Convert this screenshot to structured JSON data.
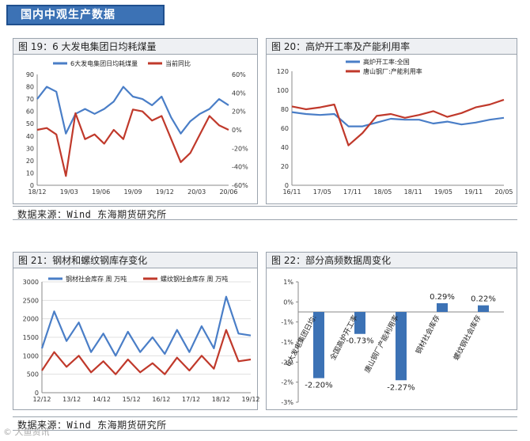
{
  "header": {
    "title": "国内中观生产数据"
  },
  "sources": [
    {
      "label": "数据来源：Wind  东海期货研究所"
    },
    {
      "label": "数据来源：Wind  东海期货研究所"
    }
  ],
  "watermark": "© 大鱼资讯",
  "colors": {
    "blue": "#4a7ec7",
    "red": "#c0392b",
    "header_bg": "#3c72b5"
  },
  "charts": [
    {
      "title": "图 19：6 大发电集团日均耗煤量",
      "chart_data": {
        "type": "line",
        "series": [
          {
            "name": "6大发电集团日均耗煤量",
            "axis": "left",
            "x": [
              "18/12",
              "19/01",
              "19/02",
              "19/03",
              "19/04",
              "19/05",
              "19/06",
              "19/07",
              "19/08",
              "19/09",
              "19/10",
              "19/11",
              "19/12",
              "20/01",
              "20/02",
              "20/03",
              "20/04",
              "20/05",
              "20/06",
              "20/07",
              "20/08"
            ],
            "values": [
              70,
              80,
              76,
              42,
              58,
              62,
              58,
              62,
              68,
              80,
              72,
              70,
              65,
              72,
              55,
              42,
              52,
              58,
              62,
              70,
              65
            ]
          },
          {
            "name": "当前同比",
            "axis": "right",
            "x": [
              "18/12",
              "19/01",
              "19/02",
              "19/03",
              "19/04",
              "19/05",
              "19/06",
              "19/07",
              "19/08",
              "19/09",
              "19/10",
              "19/11",
              "19/12",
              "20/01",
              "20/02",
              "20/03",
              "20/04",
              "20/05",
              "20/06",
              "20/07",
              "20/08"
            ],
            "values": [
              0,
              2,
              -5,
              -50,
              18,
              -10,
              -5,
              -15,
              0,
              -10,
              22,
              20,
              10,
              15,
              -10,
              -35,
              -25,
              -5,
              15,
              5,
              0
            ]
          }
        ],
        "x_ticks": [
          "18/12",
          "19/03",
          "19/06",
          "19/09",
          "19/12",
          "20/03",
          "20/06"
        ],
        "y_left": {
          "ticks": [
            "0",
            "10",
            "20",
            "30",
            "40",
            "50",
            "60",
            "70",
            "80",
            "90"
          ],
          "min": 0,
          "max": 90
        },
        "y_right": {
          "ticks": [
            "-60%",
            "-40%",
            "-20%",
            "0%",
            "20%",
            "40%",
            "60%"
          ],
          "min": -60,
          "max": 60
        },
        "legend_position": "top"
      }
    },
    {
      "title": "图 20：高炉开工率及产能利用率",
      "chart_data": {
        "type": "line",
        "series": [
          {
            "name": "高炉开工率:全国",
            "x": [
              "16/11",
              "17/02",
              "17/05",
              "17/08",
              "17/11",
              "18/02",
              "18/05",
              "18/08",
              "18/11",
              "19/02",
              "19/05",
              "19/08",
              "19/11",
              "20/02",
              "20/05",
              "20/08"
            ],
            "values": [
              77,
              75,
              74,
              75,
              62,
              62,
              66,
              70,
              69,
              69,
              65,
              67,
              64,
              66,
              69,
              71
            ]
          },
          {
            "name": "唐山钢厂:产能利用率",
            "x": [
              "16/11",
              "17/02",
              "17/05",
              "17/08",
              "17/11",
              "18/02",
              "18/05",
              "18/08",
              "18/11",
              "19/02",
              "19/05",
              "19/08",
              "19/11",
              "20/02",
              "20/05",
              "20/08"
            ],
            "values": [
              83,
              80,
              82,
              85,
              42,
              55,
              73,
              75,
              71,
              74,
              78,
              72,
              76,
              82,
              85,
              90
            ]
          }
        ],
        "x_ticks": [
          "16/11",
          "17/05",
          "17/11",
          "18/05",
          "18/11",
          "19/05",
          "19/11",
          "20/05"
        ],
        "y_left": {
          "ticks": [
            "0",
            "20",
            "40",
            "60",
            "80",
            "100",
            "120"
          ],
          "min": 0,
          "max": 120
        },
        "legend_position": "top-left"
      }
    },
    {
      "title": "图 21：钢材和螺纹钢库存变化",
      "chart_data": {
        "type": "line",
        "series": [
          {
            "name": "钢材社会库存 周 万吨",
            "x": [
              "12/12",
              "13/06",
              "13/12",
              "14/06",
              "14/12",
              "15/06",
              "15/12",
              "16/06",
              "16/12",
              "17/06",
              "17/12",
              "18/06",
              "18/12",
              "19/06",
              "19/12",
              "20/03",
              "20/06",
              "20/08"
            ],
            "values": [
              1200,
              2200,
              1400,
              1900,
              1100,
              1600,
              1000,
              1650,
              1100,
              1500,
              1050,
              1700,
              1100,
              1800,
              1200,
              2600,
              1600,
              1550
            ]
          },
          {
            "name": "螺纹钢社会库存 周 万吨",
            "x": [
              "12/12",
              "13/06",
              "13/12",
              "14/06",
              "14/12",
              "15/06",
              "15/12",
              "16/06",
              "16/12",
              "17/06",
              "17/12",
              "18/06",
              "18/12",
              "19/06",
              "19/12",
              "20/03",
              "20/06",
              "20/08"
            ],
            "values": [
              600,
              1100,
              700,
              1000,
              550,
              850,
              500,
              900,
              550,
              800,
              500,
              950,
              600,
              1000,
              650,
              1700,
              850,
              900
            ]
          }
        ],
        "x_ticks": [
          "12/12",
          "13/12",
          "14/12",
          "15/12",
          "16/12",
          "17/12",
          "18/12",
          "19/12"
        ],
        "y_left": {
          "ticks": [
            "0",
            "500",
            "1000",
            "1500",
            "2000",
            "2500",
            "3000"
          ],
          "min": 0,
          "max": 3000
        },
        "legend_position": "top"
      }
    },
    {
      "title": "图 22：部分高频数据周变化",
      "chart_data": {
        "type": "bar",
        "categories": [
          "6大发电集团日均:",
          "全国高炉开工率",
          "唐山钢厂产能利用率",
          "钢材社会库存",
          "螺纹钢社会库存"
        ],
        "values": [
          -2.2,
          -0.73,
          -2.27,
          0.29,
          0.22
        ],
        "value_labels": [
          "-2.20%",
          "-0.73%",
          "-2.27%",
          "0.29%",
          "0.22%"
        ],
        "y_ticks": [
          "1%",
          "0%",
          "-1%",
          "-1%",
          "-2%",
          "-2%",
          "-3%"
        ],
        "ylim": [
          -3,
          1
        ],
        "color": "#3c72b5"
      }
    }
  ]
}
